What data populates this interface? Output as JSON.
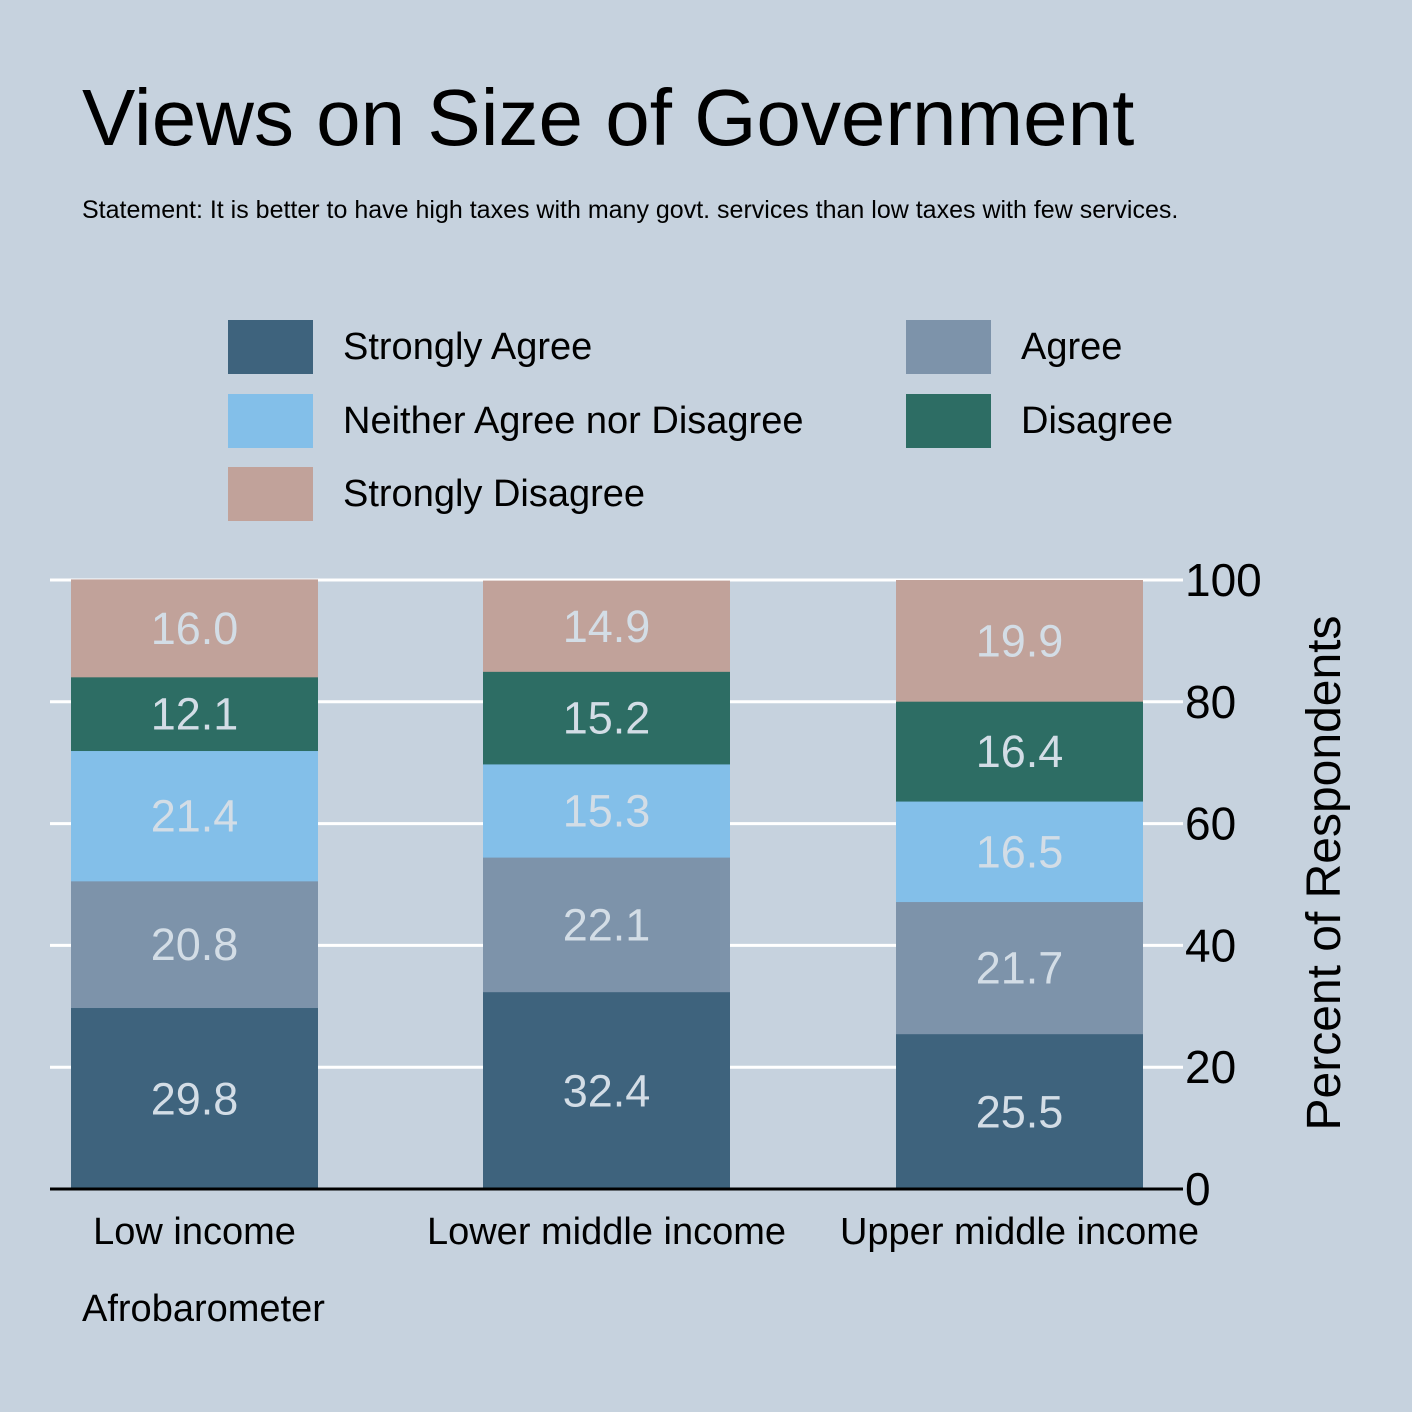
{
  "title": "Views on Size of Government",
  "subtitle": "Statement: It is better to have high taxes with many govt. services than low taxes with few services.",
  "note": "Afrobarometer",
  "colors": {
    "background": "#c6d2de",
    "strongly_agree": "#3e637d",
    "agree": "#7d93aa",
    "neither": "#83bfe9",
    "disagree": "#2d6d64",
    "strongly_disagree": "#c1a29a",
    "value_label": "#d3dde6",
    "grid": "#ffffff"
  },
  "legend": [
    {
      "label": "Strongly Agree",
      "color": "#3e637d"
    },
    {
      "label": "Agree",
      "color": "#7d93aa"
    },
    {
      "label": "Neither Agree nor Disagree",
      "color": "#83bfe9"
    },
    {
      "label": "Disagree",
      "color": "#2d6d64"
    },
    {
      "label": "Strongly Disagree",
      "color": "#c1a29a"
    }
  ],
  "chart_data": {
    "type": "bar",
    "stacked": true,
    "categories": [
      "Low income",
      "Lower middle income",
      "Upper middle income"
    ],
    "series": [
      {
        "name": "Strongly Agree",
        "color": "#3e637d",
        "values": [
          29.8,
          32.4,
          25.5
        ],
        "labels": [
          "29.8",
          "32.4",
          "25.5"
        ]
      },
      {
        "name": "Agree",
        "color": "#7d93aa",
        "values": [
          20.8,
          22.1,
          21.7
        ],
        "labels": [
          "20.8",
          "22.1",
          "21.7"
        ]
      },
      {
        "name": "Neither Agree nor Disagree",
        "color": "#83bfe9",
        "values": [
          21.4,
          15.3,
          16.5
        ],
        "labels": [
          "21.4",
          "15.3",
          "16.5"
        ]
      },
      {
        "name": "Disagree",
        "color": "#2d6d64",
        "values": [
          12.1,
          15.2,
          16.4
        ],
        "labels": [
          "12.1",
          "15.2",
          "16.4"
        ]
      },
      {
        "name": "Strongly Disagree",
        "color": "#c1a29a",
        "values": [
          16.0,
          14.9,
          19.9
        ],
        "labels": [
          "16.0",
          "14.9",
          "19.9"
        ]
      }
    ],
    "title": "Views on Size of Government",
    "xlabel": "",
    "ylabel": "Percent of Respondents",
    "ylim": [
      0,
      100
    ],
    "yticks": [
      0,
      20,
      40,
      60,
      80,
      100
    ],
    "y_axis_side": "right",
    "grid": true,
    "legend_position": "top"
  }
}
